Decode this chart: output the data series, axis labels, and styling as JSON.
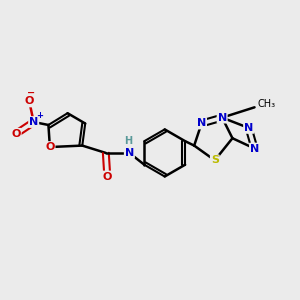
{
  "background_color": "#ebebeb",
  "figsize": [
    3.0,
    3.0
  ],
  "dpi": 100,
  "bond_color": "#000000",
  "bond_width": 1.8,
  "atom_colors": {
    "C": "#000000",
    "H": "#5a9999",
    "N": "#0000cc",
    "O": "#cc0000",
    "S": "#bbbb00"
  },
  "font_size": 8,
  "font_size_small": 7,
  "xlim": [
    0,
    10
  ],
  "ylim": [
    0,
    10
  ]
}
